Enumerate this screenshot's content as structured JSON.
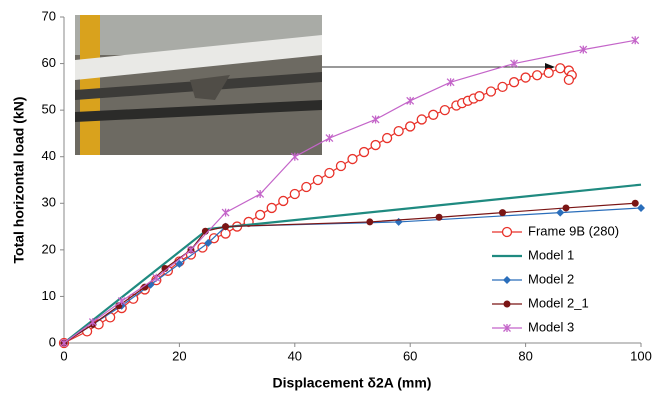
{
  "chart_data": {
    "type": "line",
    "xlabel": "Displacement δ2A (mm)",
    "ylabel": "Total horizontal load (kN)",
    "xlim": [
      0,
      100
    ],
    "xticks": [
      0,
      20,
      40,
      60,
      80,
      100
    ],
    "ylim": [
      0,
      70
    ],
    "yticks": [
      0,
      10,
      20,
      30,
      40,
      50,
      60,
      70
    ],
    "series": [
      {
        "name": "Frame 9B (280)",
        "color": "#e8322a",
        "marker": "open-circle",
        "x": [
          0,
          4,
          6,
          8,
          10,
          12,
          14,
          16,
          18,
          20,
          22,
          24,
          26,
          28,
          30,
          32,
          34,
          36,
          38,
          40,
          42,
          44,
          46,
          48,
          50,
          52,
          54,
          56,
          58,
          60,
          62,
          64,
          66,
          68,
          69,
          70,
          71,
          72,
          74,
          76,
          78,
          80,
          82,
          84,
          86,
          87.5,
          88,
          87.5
        ],
        "values": [
          0,
          2.5,
          4,
          5.5,
          7.5,
          9.5,
          11.5,
          13.5,
          15.5,
          17.5,
          19,
          20.5,
          22.5,
          23.5,
          25,
          26,
          27.5,
          29,
          30.5,
          32,
          33.5,
          35,
          36.5,
          38,
          39.5,
          41,
          42.5,
          44,
          45.5,
          46.5,
          48,
          49,
          50,
          51,
          51.5,
          52,
          52.5,
          53,
          54,
          55,
          56,
          57,
          57.5,
          58,
          59,
          58.5,
          57.5,
          56.5
        ]
      },
      {
        "name": "Model 1",
        "color": "#1f8a80",
        "marker": "none",
        "x": [
          0,
          25,
          100
        ],
        "values": [
          0,
          24.5,
          34
        ]
      },
      {
        "name": "Model 2",
        "color": "#2a6ebb",
        "marker": "diamond",
        "x": [
          0,
          5,
          10,
          15,
          20,
          25,
          28,
          58,
          86,
          100
        ],
        "values": [
          0,
          4,
          8,
          12.5,
          17,
          21.5,
          25,
          26,
          28,
          29
        ]
      },
      {
        "name": "Model 2_1",
        "color": "#7a1515",
        "marker": "circle",
        "x": [
          0,
          5,
          9.5,
          14,
          17.5,
          22,
          24.5,
          28,
          53,
          65,
          76,
          87,
          99
        ],
        "values": [
          0,
          4,
          8,
          12,
          16,
          20,
          24,
          25,
          26,
          27,
          28,
          29,
          30
        ]
      },
      {
        "name": "Model 3",
        "color": "#c465c9",
        "marker": "cross",
        "x": [
          0,
          5,
          10,
          16,
          22,
          28,
          34,
          40,
          46,
          54,
          60,
          67,
          78,
          90,
          99
        ],
        "values": [
          0,
          4.5,
          9,
          14,
          20,
          28,
          32,
          40,
          44,
          48,
          52,
          56,
          60,
          63,
          65
        ]
      }
    ],
    "legend": "lower-right"
  }
}
